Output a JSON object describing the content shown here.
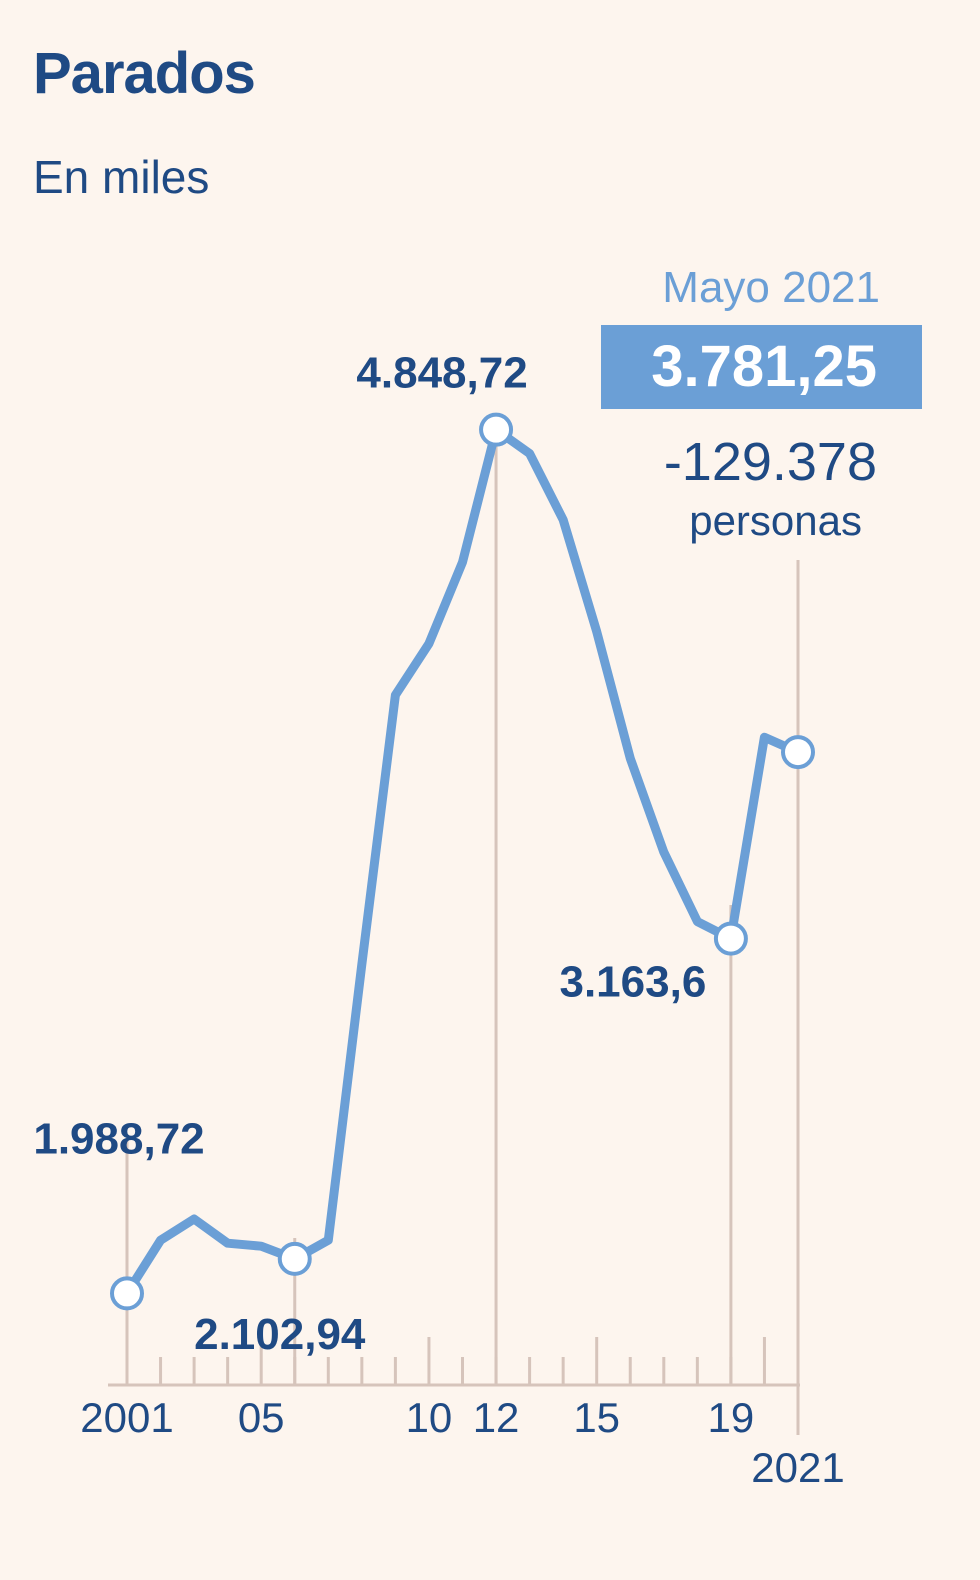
{
  "header": {
    "title": "Parados",
    "subtitle": "En miles"
  },
  "colors": {
    "background": "#fdf5ee",
    "line": "#6b9fd6",
    "text_dark": "#1f4a84",
    "text_light": "#6b9fd6",
    "gridline": "#d6c4bb"
  },
  "callout": {
    "period": "Mayo 2021",
    "value": "3.781,25",
    "change_value": "-129.378",
    "change_unit": "personas"
  },
  "chart_data": {
    "type": "line",
    "title": "Parados",
    "subtitle": "En miles",
    "x": [
      2001,
      2002,
      2003,
      2004,
      2005,
      2006,
      2007,
      2008,
      2009,
      2010,
      2011,
      2012,
      2013,
      2014,
      2015,
      2016,
      2017,
      2018,
      2019,
      2020,
      2021
    ],
    "series": [
      {
        "values": [
          1988.72,
          2165,
          2235,
          2155,
          2145,
          2102.94,
          2165,
          3080,
          3970,
          4140,
          4410,
          4848.72,
          4770,
          4550,
          4180,
          3760,
          3450,
          3220,
          3163.6,
          3830,
          3781.25
        ]
      }
    ],
    "highlighted_points": [
      {
        "x": 2001,
        "label": "1.988,72"
      },
      {
        "x": 2006,
        "label": "2.102,94"
      },
      {
        "x": 2012,
        "label": "4.848,72"
      },
      {
        "x": 2019,
        "label": "3.163,6"
      },
      {
        "x": 2021,
        "label": ""
      }
    ],
    "x_tick_labels": [
      {
        "x": 2001,
        "label": "2001"
      },
      {
        "x": 2005,
        "label": "05"
      },
      {
        "x": 2010,
        "label": "10"
      },
      {
        "x": 2012,
        "label": "12"
      },
      {
        "x": 2015,
        "label": "15"
      },
      {
        "x": 2019,
        "label": "19"
      },
      {
        "x": 2021,
        "label": "2021"
      }
    ],
    "xlim": [
      2001,
      2021
    ],
    "ylim": [
      1000,
      6000
    ],
    "grid": false,
    "legend": "none"
  }
}
